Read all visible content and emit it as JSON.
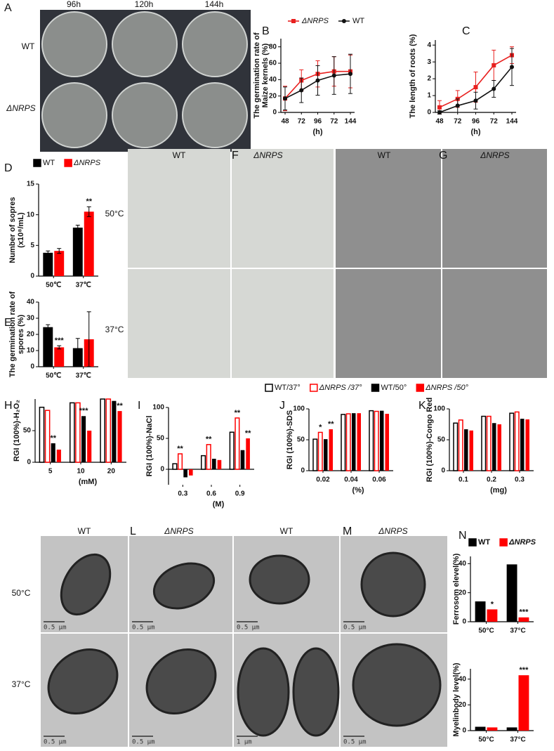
{
  "figure": {
    "letters": [
      "A",
      "B",
      "C",
      "D",
      "E",
      "F",
      "G",
      "H",
      "I",
      "J",
      "K",
      "L",
      "M",
      "N"
    ],
    "panel_a": {
      "columns": [
        "96h",
        "120h",
        "144h"
      ],
      "rows": [
        "WT",
        "ΔNRPS"
      ]
    },
    "panel_fg": {
      "columns": [
        "WT",
        "ΔNRPS",
        "WT",
        "ΔNRPS"
      ],
      "rows": [
        "50°C",
        "37°C"
      ]
    },
    "panel_lm": {
      "columns": [
        "WT",
        "ΔNRPS",
        "WT",
        "ΔNRPS"
      ],
      "rows": [
        "50°C",
        "37°C"
      ],
      "scale_bars": [
        "0.5 μm",
        "0.5 μm",
        "0.5 μm",
        "0.5 μm",
        "0.5 μm",
        "0.5 μm",
        "1 μm",
        "0.5 μm"
      ]
    }
  },
  "chart_data": [
    {
      "type": "line",
      "ylabel": [
        "The germination rate of",
        "Maize kernels (%)"
      ],
      "xlabel": "(h)",
      "categories": [
        "48",
        "72",
        "96",
        "72",
        "144"
      ],
      "ylim": [
        0,
        90
      ],
      "yticks": [
        0,
        20,
        40,
        60,
        80
      ],
      "series": [
        {
          "name": "ΔNRPS",
          "color": "#e8201f",
          "marker": "square",
          "values": [
            17,
            39,
            47,
            50,
            50
          ],
          "errors": [
            15,
            13,
            16,
            18,
            20
          ]
        },
        {
          "name": "WT",
          "color": "#111111",
          "marker": "circle",
          "values": [
            17,
            27,
            39,
            45,
            47
          ],
          "errors": [
            14,
            15,
            18,
            23,
            24
          ]
        }
      ]
    },
    {
      "type": "line",
      "ylabel": [
        "The length of roots (%)"
      ],
      "xlabel": "(h)",
      "categories": [
        "48",
        "72",
        "96",
        "72",
        "144"
      ],
      "ylim": [
        0,
        4.3
      ],
      "yticks": [
        0,
        1,
        2,
        3,
        4
      ],
      "series": [
        {
          "color": "#e8201f",
          "marker": "square",
          "values": [
            0.3,
            0.8,
            1.5,
            2.8,
            3.4
          ],
          "errors": [
            0.4,
            0.5,
            0.9,
            0.9,
            0.5
          ]
        },
        {
          "color": "#111111",
          "marker": "circle",
          "values": [
            0,
            0.4,
            0.7,
            1.4,
            2.7
          ],
          "errors": [
            0.1,
            0.4,
            0.5,
            0.5,
            1.1
          ]
        }
      ]
    },
    {
      "type": "bar",
      "ylabel": [
        "Number of sopres",
        "(x10⁸/mL)"
      ],
      "categories": [
        "50℃",
        "37℃"
      ],
      "ylim": [
        0,
        15
      ],
      "yticks": [
        0,
        5,
        10,
        15
      ],
      "series": [
        {
          "name": "WT",
          "color": "#000000",
          "values": [
            3.8,
            7.9
          ],
          "errors": [
            0.3,
            0.4
          ]
        },
        {
          "name": "ΔNRPS",
          "color": "#ff0000",
          "values": [
            4.1,
            10.5
          ],
          "errors": [
            0.4,
            0.8
          ]
        }
      ],
      "annotations": [
        {
          "text": "**",
          "category": 1,
          "series": 1
        }
      ]
    },
    {
      "type": "bar",
      "ylabel": [
        "The germination rate of",
        "spores (%)"
      ],
      "categories": [
        "50℃",
        "37℃"
      ],
      "ylim": [
        0,
        40
      ],
      "yticks": [
        0,
        10,
        20,
        30,
        40
      ],
      "series": [
        {
          "color": "#000000",
          "values": [
            24.5,
            11.5
          ],
          "errors": [
            1.5,
            6
          ]
        },
        {
          "color": "#ff0000",
          "values": [
            12,
            17
          ],
          "errors": [
            1,
            17
          ]
        }
      ],
      "annotations": [
        {
          "text": "***",
          "category": 0,
          "series": 1
        }
      ]
    },
    {
      "type": "bar",
      "ylabel": [
        "RGI (100%)-H₂O₂"
      ],
      "xlabel": "(mM)",
      "categories": [
        "5",
        "10",
        "20"
      ],
      "ylim": [
        0,
        100
      ],
      "yticks": [
        0,
        50
      ],
      "series": [
        {
          "name": "WT/37°",
          "color": "#ffffff",
          "edgecolor": "#000000",
          "values": [
            87,
            94,
            100
          ]
        },
        {
          "name": "ΔNRPS /37°",
          "color": "#ffffff",
          "edgecolor": "#ff0000",
          "values": [
            82,
            94,
            100
          ]
        },
        {
          "name": "WT/50°",
          "color": "#000000",
          "values": [
            30,
            73,
            97
          ]
        },
        {
          "name": "ΔNRPS /50°",
          "color": "#ff0000",
          "values": [
            20,
            50,
            81
          ]
        }
      ],
      "annotations": [
        {
          "text": "**",
          "category": 0,
          "series": 2
        },
        {
          "text": "***",
          "category": 1,
          "series": 2
        },
        {
          "text": "**",
          "category": 2,
          "series": 3
        }
      ]
    },
    {
      "type": "bar",
      "ylabel": [
        "RGI (100%)-NaCl"
      ],
      "xlabel": "(M)",
      "categories": [
        "0.3",
        "0.6",
        "0.9"
      ],
      "ylim": [
        -25,
        100
      ],
      "yticks": [
        0,
        50,
        100
      ],
      "series": [
        {
          "color": "#ffffff",
          "edgecolor": "#000000",
          "values": [
            9,
            22,
            60
          ]
        },
        {
          "color": "#ffffff",
          "edgecolor": "#ff0000",
          "values": [
            25,
            40,
            83
          ]
        },
        {
          "color": "#000000",
          "values": [
            -13,
            17,
            31
          ]
        },
        {
          "color": "#ff0000",
          "values": [
            -10,
            15,
            50
          ]
        }
      ],
      "annotations": [
        {
          "text": "**",
          "category": 0,
          "series": 1
        },
        {
          "text": "**",
          "category": 1,
          "series": 1
        },
        {
          "text": "**",
          "category": 2,
          "series": 1
        },
        {
          "text": "**",
          "category": 2,
          "series": 3
        }
      ]
    },
    {
      "type": "bar",
      "ylabel": [
        "RGI (100%)-SDS"
      ],
      "xlabel": "(%)",
      "categories": [
        "0.02",
        "0.04",
        "0.06"
      ],
      "ylim": [
        0,
        100
      ],
      "yticks": [
        0,
        50,
        100
      ],
      "series": [
        {
          "color": "#ffffff",
          "edgecolor": "#000000",
          "values": [
            51,
            91,
            97
          ]
        },
        {
          "color": "#ffffff",
          "edgecolor": "#ff0000",
          "values": [
            62,
            92,
            96
          ]
        },
        {
          "color": "#000000",
          "values": [
            51,
            93,
            97
          ]
        },
        {
          "color": "#ff0000",
          "values": [
            67,
            93,
            92
          ]
        }
      ],
      "annotations": [
        {
          "text": "*",
          "category": 0,
          "series": 1
        },
        {
          "text": "**",
          "category": 0,
          "series": 3
        }
      ]
    },
    {
      "type": "bar",
      "ylabel": [
        "RGI (100%)-Congo Red"
      ],
      "xlabel": "(mg)",
      "categories": [
        "0.1",
        "0.2",
        "0.3"
      ],
      "ylim": [
        0,
        100
      ],
      "yticks": [
        0,
        50,
        100
      ],
      "series": [
        {
          "color": "#ffffff",
          "edgecolor": "#000000",
          "values": [
            77,
            88,
            93
          ]
        },
        {
          "color": "#ffffff",
          "edgecolor": "#ff0000",
          "values": [
            82,
            88,
            95
          ]
        },
        {
          "color": "#000000",
          "values": [
            67,
            77,
            84
          ]
        },
        {
          "color": "#ff0000",
          "values": [
            65,
            75,
            83
          ]
        }
      ]
    },
    {
      "type": "bar",
      "ylabel": [
        "Ferrosom elevel(%)"
      ],
      "categories": [
        "50°C",
        "37°C"
      ],
      "ylim": [
        0,
        45
      ],
      "yticks": [
        0,
        20,
        40
      ],
      "series": [
        {
          "name": "WT",
          "color": "#000000",
          "values": [
            14,
            39.5
          ]
        },
        {
          "name": "ΔNRPS",
          "color": "#ff0000",
          "values": [
            8.5,
            3
          ]
        }
      ],
      "annotations": [
        {
          "text": "*",
          "category": 0,
          "series": 1
        },
        {
          "text": "***",
          "category": 1,
          "series": 1
        }
      ]
    },
    {
      "type": "bar",
      "ylabel": [
        "Myelinbody level(%)"
      ],
      "categories": [
        "50°C",
        "37°C"
      ],
      "ylim": [
        0,
        48
      ],
      "yticks": [
        0,
        20,
        40
      ],
      "series": [
        {
          "color": "#000000",
          "values": [
            3,
            2.5
          ]
        },
        {
          "color": "#ff0000",
          "values": [
            2.5,
            43
          ]
        }
      ],
      "annotations": [
        {
          "text": "***",
          "category": 1,
          "series": 1
        }
      ]
    }
  ]
}
